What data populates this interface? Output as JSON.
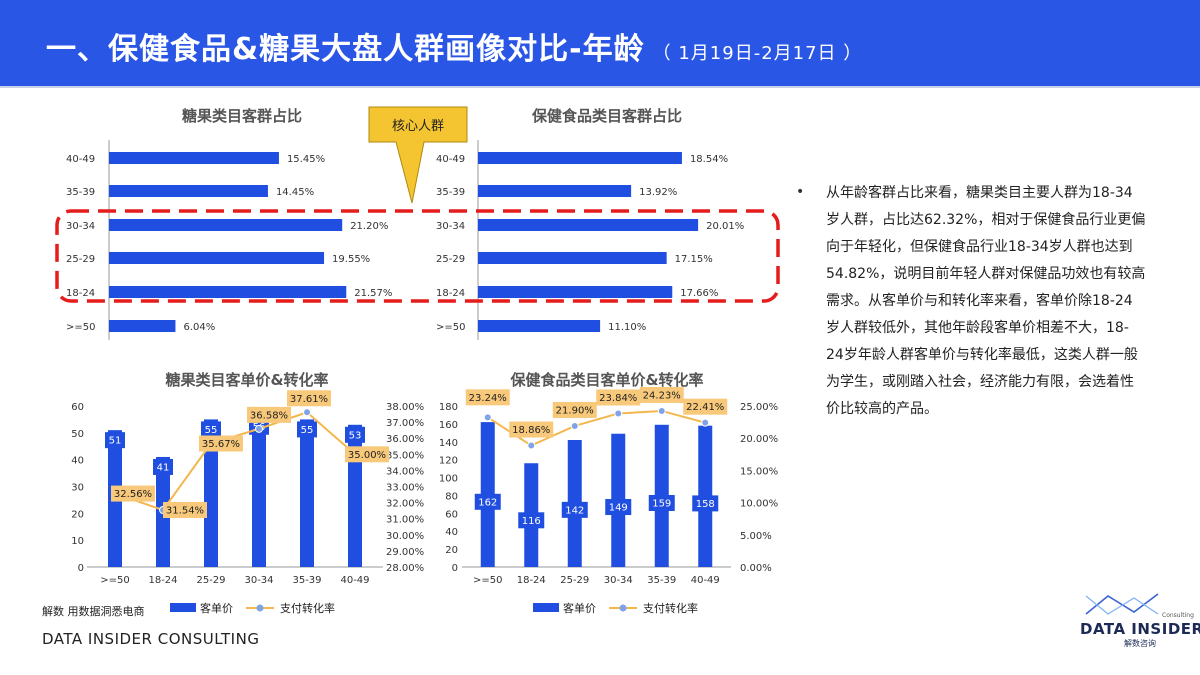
{
  "header": {
    "title": "一、保健食品&糖果大盘人群画像对比-年龄",
    "subtitle": "（ 1月19日-2月17日 ）"
  },
  "callout": {
    "label": "核心人群"
  },
  "bullet": {
    "text": "从年龄客群占比来看，糖果类目主要人群为18-34岁人群，占比达62.32%，相对于保健食品行业更偏向于年轻化，但保健食品行业18-34岁人群也达到54.82%，说明目前年轻人群对保健品功效也有较高需求。从客单价与和转化率来看，客单价除18-24岁人群较低外，其他年龄段客单价相差不大，18-24岁年龄人群客单价与转化率最低，这类人群一般为学生，或刚踏入社会，经济能力有限，会选着性价比较高的产品。"
  },
  "footer": {
    "source": "解数 用数据洞悉电商",
    "company": "DATA INSIDER CONSULTING"
  },
  "logo": {
    "name": "DATA INSIDER",
    "cn": "解数咨询",
    "small": "Consulting"
  },
  "colors": {
    "header": "#2a56e6",
    "bar": "#1f4ee0",
    "line": "#f3b74e",
    "label_bg": "#f8c97a",
    "dash": "#e51c1c"
  },
  "chart_data": [
    {
      "type": "bar",
      "orientation": "horizontal",
      "title": "糖果类目客群占比",
      "categories": [
        "40-49",
        "35-39",
        "30-34",
        "25-29",
        "18-24",
        ">=50"
      ],
      "values": [
        15.45,
        14.45,
        21.2,
        19.55,
        21.57,
        6.04
      ],
      "labels": [
        "15.45%",
        "14.45%",
        "21.20%",
        "19.55%",
        "21.57%",
        "6.04%"
      ],
      "xlim": [
        0,
        25
      ]
    },
    {
      "type": "bar",
      "orientation": "horizontal",
      "title": "保健食品类目客群占比",
      "categories": [
        "40-49",
        "35-39",
        "30-34",
        "25-29",
        "18-24",
        ">=50"
      ],
      "values": [
        18.54,
        13.92,
        20.01,
        17.15,
        17.66,
        11.1
      ],
      "labels": [
        "18.54%",
        "13.92%",
        "20.01%",
        "17.15%",
        "17.66%",
        "11.10%"
      ],
      "xlim": [
        0,
        25
      ]
    },
    {
      "type": "bar+line",
      "title": "糖果类目客单价&转化率",
      "categories": [
        ">=50",
        "18-24",
        "25-29",
        "30-34",
        "35-39",
        "40-49"
      ],
      "series": [
        {
          "name": "客单价",
          "type": "bar",
          "axis": "left",
          "values": [
            51,
            41,
            55,
            56,
            55,
            53
          ],
          "labels": [
            "51",
            "41",
            "55",
            "56",
            "55",
            "53"
          ]
        },
        {
          "name": "支付转化率",
          "type": "line",
          "axis": "right",
          "values": [
            32.56,
            31.54,
            35.67,
            36.58,
            37.61,
            35.0
          ],
          "labels": [
            "32.56%",
            "31.54%",
            "35.67%",
            "36.58%",
            "37.61%",
            "35.00%"
          ]
        }
      ],
      "ylim_left": [
        0,
        60
      ],
      "yticks_left": [
        "0",
        "10",
        "20",
        "30",
        "40",
        "50",
        "60"
      ],
      "ylim_right": [
        28,
        38
      ],
      "yticks_right": [
        "28.00%",
        "29.00%",
        "30.00%",
        "31.00%",
        "32.00%",
        "33.00%",
        "34.00%",
        "35.00%",
        "36.00%",
        "37.00%",
        "38.00%"
      ]
    },
    {
      "type": "bar+line",
      "title": "保健食品类目客单价&转化率",
      "categories": [
        ">=50",
        "18-24",
        "25-29",
        "30-34",
        "35-39",
        "40-49"
      ],
      "series": [
        {
          "name": "客单价",
          "type": "bar",
          "axis": "left",
          "values": [
            162,
            116,
            142,
            149,
            159,
            158
          ],
          "labels": [
            "162",
            "116",
            "142",
            "149",
            "159",
            "158"
          ]
        },
        {
          "name": "支付转化率",
          "type": "line",
          "axis": "right",
          "values": [
            23.24,
            18.86,
            21.9,
            23.84,
            24.23,
            22.41
          ],
          "labels": [
            "23.24%",
            "18.86%",
            "21.90%",
            "23.84%",
            "24.23%",
            "22.41%"
          ]
        }
      ],
      "ylim_left": [
        0,
        180
      ],
      "yticks_left": [
        "0",
        "20",
        "40",
        "60",
        "80",
        "100",
        "120",
        "140",
        "160",
        "180"
      ],
      "ylim_right": [
        0,
        25
      ],
      "yticks_right": [
        "0.00%",
        "5.00%",
        "10.00%",
        "15.00%",
        "20.00%",
        "25.00%"
      ]
    }
  ]
}
